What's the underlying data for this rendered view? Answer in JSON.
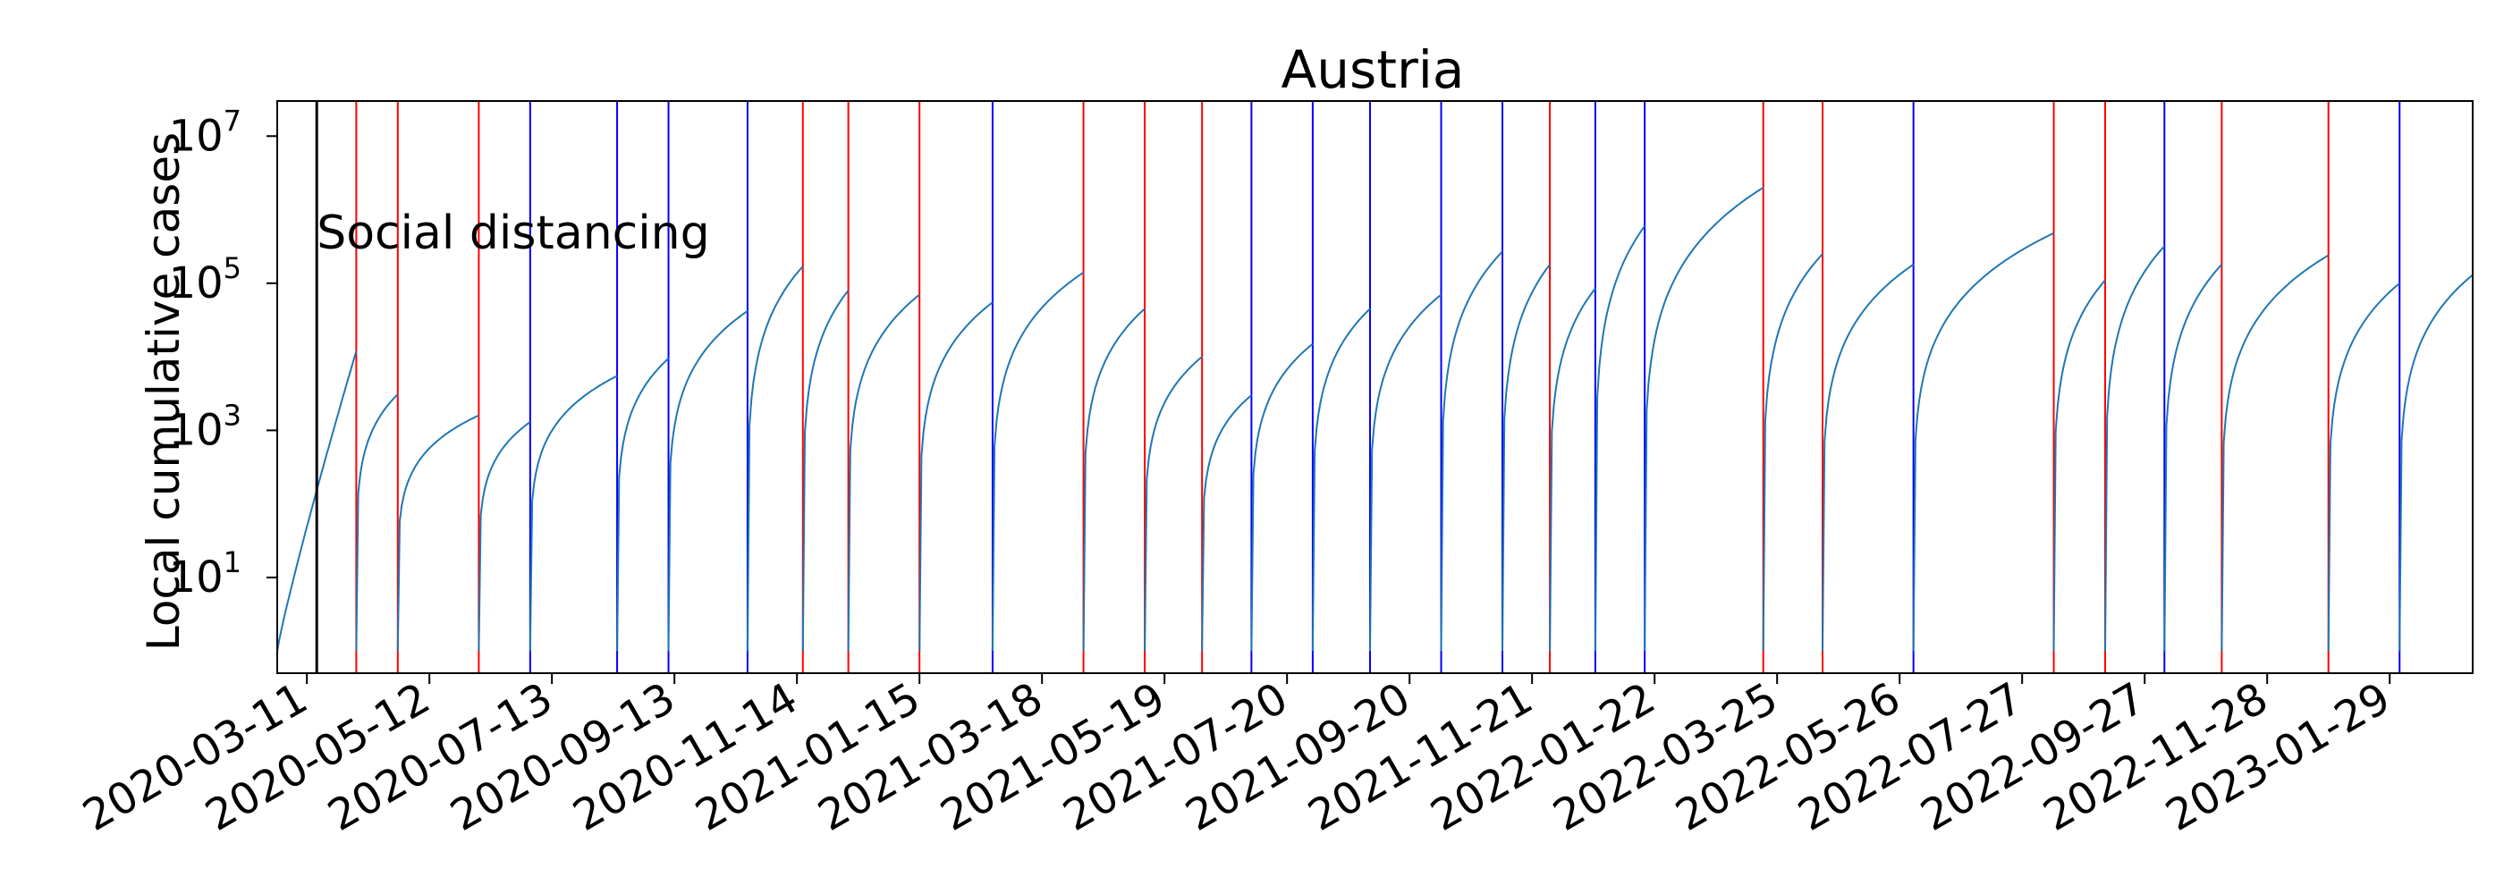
{
  "chart_data": {
    "type": "line",
    "title": "Austria",
    "ylabel": "Local cumulative cases",
    "xlabel": "",
    "yscale": "log",
    "ylim": [
      0.5,
      30000000
    ],
    "xlim": [
      "2020-02-25",
      "2023-03-12"
    ],
    "grid": false,
    "line_color": "#1f77b4",
    "x_ticks": [
      "2020-03-11",
      "2020-05-12",
      "2020-07-13",
      "2020-09-13",
      "2020-11-14",
      "2021-01-15",
      "2021-03-18",
      "2021-05-19",
      "2021-07-20",
      "2021-09-20",
      "2021-11-21",
      "2022-01-22",
      "2022-03-25",
      "2022-05-26",
      "2022-07-27",
      "2022-09-27",
      "2022-11-28",
      "2023-01-29"
    ],
    "y_ticks": [
      {
        "value": 10,
        "base": "10",
        "exp": "1"
      },
      {
        "value": 1000,
        "base": "10",
        "exp": "3"
      },
      {
        "value": 100000,
        "base": "10",
        "exp": "5"
      },
      {
        "value": 10000000,
        "base": "10",
        "exp": "7"
      }
    ],
    "annotation": {
      "text": "Social distancing",
      "date": "2020-03-16",
      "color": "#000000"
    },
    "change_points": [
      {
        "date": "2020-04-05",
        "color": "red"
      },
      {
        "date": "2020-04-26",
        "color": "red"
      },
      {
        "date": "2020-06-06",
        "color": "red"
      },
      {
        "date": "2020-07-02",
        "color": "blue"
      },
      {
        "date": "2020-08-15",
        "color": "blue"
      },
      {
        "date": "2020-09-10",
        "color": "blue"
      },
      {
        "date": "2020-10-20",
        "color": "blue"
      },
      {
        "date": "2020-11-17",
        "color": "red"
      },
      {
        "date": "2020-12-10",
        "color": "red"
      },
      {
        "date": "2021-01-15",
        "color": "red"
      },
      {
        "date": "2021-02-21",
        "color": "blue"
      },
      {
        "date": "2021-04-08",
        "color": "red"
      },
      {
        "date": "2021-05-09",
        "color": "red"
      },
      {
        "date": "2021-06-07",
        "color": "red"
      },
      {
        "date": "2021-07-02",
        "color": "blue"
      },
      {
        "date": "2021-08-02",
        "color": "blue"
      },
      {
        "date": "2021-08-31",
        "color": "blue"
      },
      {
        "date": "2021-10-06",
        "color": "blue"
      },
      {
        "date": "2021-11-06",
        "color": "blue"
      },
      {
        "date": "2021-11-30",
        "color": "red"
      },
      {
        "date": "2021-12-23",
        "color": "blue"
      },
      {
        "date": "2022-01-17",
        "color": "blue"
      },
      {
        "date": "2022-03-18",
        "color": "red"
      },
      {
        "date": "2022-04-17",
        "color": "red"
      },
      {
        "date": "2022-06-02",
        "color": "blue"
      },
      {
        "date": "2022-08-12",
        "color": "red"
      },
      {
        "date": "2022-09-07",
        "color": "red"
      },
      {
        "date": "2022-10-07",
        "color": "blue"
      },
      {
        "date": "2022-11-05",
        "color": "red"
      },
      {
        "date": "2022-12-29",
        "color": "red"
      },
      {
        "date": "2023-02-03",
        "color": "blue"
      }
    ],
    "segments": [
      {
        "start": "2020-02-25",
        "end": "2020-04-05",
        "peak": 12000
      },
      {
        "start": "2020-04-05",
        "end": "2020-04-26",
        "peak": 3100
      },
      {
        "start": "2020-04-26",
        "end": "2020-06-06",
        "peak": 1600
      },
      {
        "start": "2020-06-06",
        "end": "2020-07-02",
        "peak": 1300
      },
      {
        "start": "2020-07-02",
        "end": "2020-08-15",
        "peak": 5500
      },
      {
        "start": "2020-08-15",
        "end": "2020-09-10",
        "peak": 9500
      },
      {
        "start": "2020-09-10",
        "end": "2020-10-20",
        "peak": 42000
      },
      {
        "start": "2020-10-20",
        "end": "2020-11-17",
        "peak": 170000
      },
      {
        "start": "2020-11-17",
        "end": "2020-12-10",
        "peak": 80000
      },
      {
        "start": "2020-12-10",
        "end": "2021-01-15",
        "peak": 70000
      },
      {
        "start": "2021-01-15",
        "end": "2021-02-21",
        "peak": 55000
      },
      {
        "start": "2021-02-21",
        "end": "2021-04-08",
        "peak": 140000
      },
      {
        "start": "2021-04-08",
        "end": "2021-05-09",
        "peak": 45000
      },
      {
        "start": "2021-05-09",
        "end": "2021-06-07",
        "peak": 10000
      },
      {
        "start": "2021-06-07",
        "end": "2021-07-02",
        "peak": 3000
      },
      {
        "start": "2021-07-02",
        "end": "2021-08-02",
        "peak": 15000
      },
      {
        "start": "2021-08-02",
        "end": "2021-08-31",
        "peak": 45000
      },
      {
        "start": "2021-08-31",
        "end": "2021-10-06",
        "peak": 70000
      },
      {
        "start": "2021-10-06",
        "end": "2021-11-06",
        "peak": 270000
      },
      {
        "start": "2021-11-06",
        "end": "2021-11-30",
        "peak": 180000
      },
      {
        "start": "2021-11-30",
        "end": "2021-12-23",
        "peak": 85000
      },
      {
        "start": "2021-12-23",
        "end": "2022-01-17",
        "peak": 600000
      },
      {
        "start": "2022-01-17",
        "end": "2022-03-18",
        "peak": 2000000
      },
      {
        "start": "2022-03-18",
        "end": "2022-04-17",
        "peak": 250000
      },
      {
        "start": "2022-04-17",
        "end": "2022-06-02",
        "peak": 180000
      },
      {
        "start": "2022-06-02",
        "end": "2022-08-12",
        "peak": 480000
      },
      {
        "start": "2022-08-12",
        "end": "2022-09-07",
        "peak": 110000
      },
      {
        "start": "2022-09-07",
        "end": "2022-10-07",
        "peak": 320000
      },
      {
        "start": "2022-10-07",
        "end": "2022-11-05",
        "peak": 180000
      },
      {
        "start": "2022-11-05",
        "end": "2022-12-29",
        "peak": 240000
      },
      {
        "start": "2022-12-29",
        "end": "2023-02-03",
        "peak": 100000
      },
      {
        "start": "2023-02-03",
        "end": "2023-03-12",
        "peak": 130000
      }
    ]
  }
}
